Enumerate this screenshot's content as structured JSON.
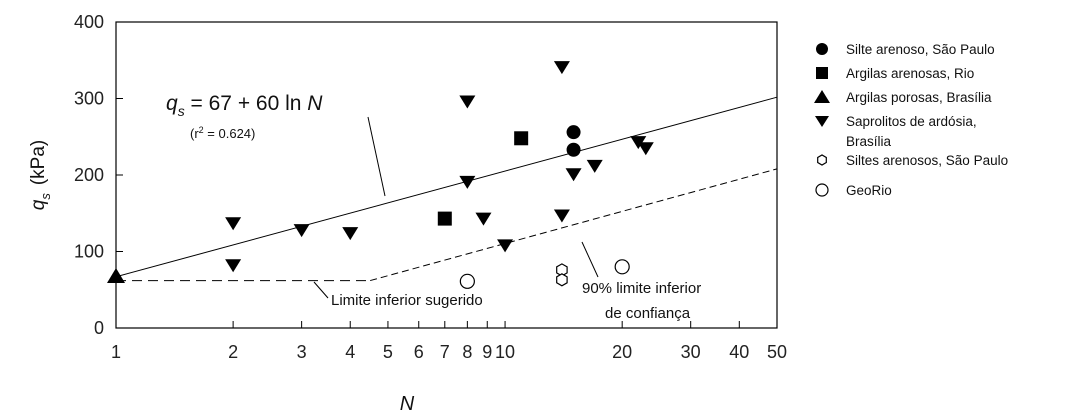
{
  "chart_data": {
    "type": "scatter",
    "title": "",
    "xlabel": "N",
    "ylabel_main": "q",
    "ylabel_sub": "s",
    "ylabel_unit": "(kPa)",
    "x_scale": "log",
    "xlim": [
      1,
      50
    ],
    "ylim": [
      0,
      400
    ],
    "x_ticks": [
      {
        "v": 1,
        "label": "1"
      },
      {
        "v": 2,
        "label": "2"
      },
      {
        "v": 3,
        "label": "3"
      },
      {
        "v": 4,
        "label": "4"
      },
      {
        "v": 5,
        "label": "5"
      },
      {
        "v": 6,
        "label": "6"
      },
      {
        "v": 7,
        "label": "7"
      },
      {
        "v": 8,
        "label": "8"
      },
      {
        "v": 9,
        "label": "9"
      },
      {
        "v": 10,
        "label": "10"
      },
      {
        "v": 20,
        "label": "20"
      },
      {
        "v": 30,
        "label": "30"
      },
      {
        "v": 40,
        "label": "40"
      },
      {
        "v": 50,
        "label": "50"
      }
    ],
    "y_ticks": [
      {
        "v": 0,
        "label": "0"
      },
      {
        "v": 100,
        "label": "100"
      },
      {
        "v": 200,
        "label": "200"
      },
      {
        "v": 300,
        "label": "300"
      },
      {
        "v": 400,
        "label": "400"
      }
    ],
    "grid": false,
    "legend_position": "right",
    "series": [
      {
        "name": "Silte arenoso, São Paulo",
        "marker": "circle-filled",
        "points": [
          [
            15,
            256
          ],
          [
            15,
            233
          ]
        ]
      },
      {
        "name": "Argilas arenosas, Rio",
        "marker": "square-filled",
        "points": [
          [
            7,
            143
          ],
          [
            11,
            248
          ]
        ]
      },
      {
        "name": "Argilas porosas, Brasília",
        "marker": "triangle-up-filled",
        "points": [
          [
            1,
            68
          ]
        ]
      },
      {
        "name_lines": [
          "Saprolitos de ardósia,",
          "Brasília"
        ],
        "marker": "triangle-down-filled",
        "points": [
          [
            2,
            137
          ],
          [
            2,
            82
          ],
          [
            3,
            128
          ],
          [
            4,
            124
          ],
          [
            8,
            296
          ],
          [
            8,
            191
          ],
          [
            8.8,
            143
          ],
          [
            10,
            108
          ],
          [
            14,
            341
          ],
          [
            14,
            147
          ],
          [
            15,
            201
          ],
          [
            17,
            212
          ],
          [
            22,
            243
          ],
          [
            23,
            235
          ]
        ]
      },
      {
        "name": "Siltes arenosos, São Paulo",
        "marker": "hexagon-open",
        "points": [
          [
            14,
            76
          ],
          [
            14,
            63
          ]
        ]
      },
      {
        "name": "GeoRio",
        "marker": "circle-open",
        "points": [
          [
            8,
            61
          ],
          [
            20,
            80
          ]
        ]
      }
    ],
    "lines": [
      {
        "kind": "fit",
        "style": "solid",
        "points": [
          [
            1,
            67
          ],
          [
            50,
            301.7
          ]
        ]
      },
      {
        "kind": "lower90",
        "style": "dash-solid",
        "dashed_points": [
          [
            1,
            62
          ],
          [
            4.5,
            62
          ]
        ],
        "solid_points": [
          [
            4.5,
            62
          ],
          [
            50,
            208
          ]
        ]
      }
    ],
    "annotations": {
      "eq_q": "q",
      "eq_s": "s",
      "eq_rest": " = 67 + 60 ln ",
      "eq_N": "N",
      "r2_open": "(r",
      "r2_sup": "2",
      "r2_rest": " = 0.624)",
      "lower_suggested": "Limite inferior sugerido",
      "conf_line1": "90% limite inferior",
      "conf_line2": "de confiança"
    }
  }
}
